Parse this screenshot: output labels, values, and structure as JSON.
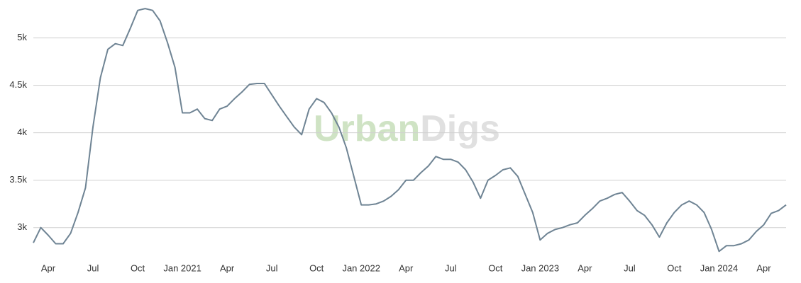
{
  "chart_data": {
    "type": "line",
    "watermark": [
      "Urban",
      "Digs"
    ],
    "watermark_colors": [
      "#cfe3c4",
      "#e0e0e0"
    ],
    "color": "#6f8494",
    "grid": true,
    "ylim": [
      2640,
      5400
    ],
    "yticks": [
      {
        "value": 3000,
        "label": "3k"
      },
      {
        "value": 3500,
        "label": "3.5k"
      },
      {
        "value": 4000,
        "label": "4k"
      },
      {
        "value": 4500,
        "label": "4.5k"
      },
      {
        "value": 5000,
        "label": "5k"
      }
    ],
    "categories": [
      null,
      null,
      "Apr",
      null,
      null,
      null,
      null,
      null,
      "Jul",
      null,
      null,
      null,
      null,
      null,
      "Oct",
      null,
      null,
      null,
      null,
      null,
      "Jan 2021",
      null,
      null,
      null,
      null,
      null,
      "Apr",
      null,
      null,
      null,
      null,
      null,
      "Jul",
      null,
      null,
      null,
      null,
      null,
      "Oct",
      null,
      null,
      null,
      null,
      null,
      "Jan 2022",
      null,
      null,
      null,
      null,
      null,
      "Apr",
      null,
      null,
      null,
      null,
      null,
      "Jul",
      null,
      null,
      null,
      null,
      null,
      "Oct",
      null,
      null,
      null,
      null,
      null,
      "Jan 2023",
      null,
      null,
      null,
      null,
      null,
      "Apr",
      null,
      null,
      null,
      null,
      null,
      "Jul",
      null,
      null,
      null,
      null,
      null,
      "Oct",
      null,
      null,
      null,
      null,
      null,
      "Jan 2024",
      null,
      null,
      null,
      null,
      null,
      "Apr",
      null,
      null,
      null
    ],
    "values": [
      2840,
      3000,
      2920,
      2830,
      2830,
      2940,
      3160,
      3420,
      4060,
      4580,
      4880,
      4940,
      4920,
      5100,
      5290,
      5310,
      5290,
      5180,
      4950,
      4690,
      4210,
      4210,
      4250,
      4150,
      4130,
      4250,
      4280,
      4360,
      4430,
      4510,
      4520,
      4520,
      4400,
      4280,
      4170,
      4060,
      3980,
      4250,
      4360,
      4320,
      4210,
      4060,
      3840,
      3540,
      3240,
      3240,
      3250,
      3280,
      3330,
      3400,
      3500,
      3500,
      3580,
      3650,
      3750,
      3720,
      3720,
      3690,
      3610,
      3480,
      3310,
      3500,
      3550,
      3610,
      3630,
      3540,
      3350,
      3160,
      2870,
      2940,
      2980,
      3000,
      3030,
      3050,
      3130,
      3200,
      3280,
      3310,
      3350,
      3370,
      3280,
      3180,
      3130,
      3030,
      2900,
      3050,
      3160,
      3240,
      3280,
      3240,
      3160,
      2980,
      2750,
      2810,
      2810,
      2830,
      2870,
      2960,
      3030,
      3150,
      3180,
      3240
    ]
  }
}
